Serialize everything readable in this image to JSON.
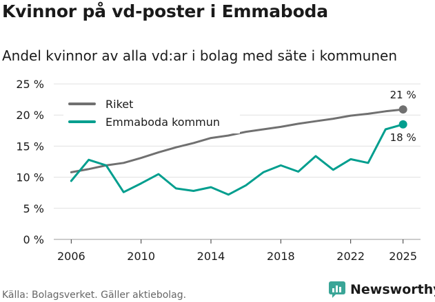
{
  "header": {
    "title": "Kvinnor på vd-poster i Emmaboda",
    "subtitle": "Andel kvinnor av alla vd:ar i bolag med säte i kommunen"
  },
  "footer": {
    "source": "Källa: Bolagsverket. Gäller aktiebolag.",
    "brand": "Newsworthy"
  },
  "colors": {
    "riket": "#707070",
    "kommun": "#009e8e",
    "brand": "#3aa597",
    "grid": "#e0e0e0"
  },
  "chart_data": {
    "type": "line",
    "title": "Kvinnor på vd-poster i Emmaboda",
    "subtitle": "Andel kvinnor av alla vd:ar i bolag med säte i kommunen",
    "xlabel": "",
    "ylabel": "",
    "x": [
      2006,
      2007,
      2008,
      2009,
      2010,
      2011,
      2012,
      2013,
      2014,
      2015,
      2016,
      2017,
      2018,
      2019,
      2020,
      2021,
      2022,
      2023,
      2024,
      2025
    ],
    "xlim": [
      2005,
      2026
    ],
    "xticks": [
      2006,
      2010,
      2014,
      2018,
      2022,
      2025
    ],
    "ylim": [
      0,
      25
    ],
    "yticks": [
      0,
      5,
      10,
      15,
      20,
      25
    ],
    "ytick_labels": [
      "0 %",
      "5 %",
      "10 %",
      "15 %",
      "20 %",
      "25 %"
    ],
    "grid": true,
    "legend_position": "top-left",
    "series": [
      {
        "name": "Riket",
        "color": "#707070",
        "values": [
          10.8,
          11.3,
          11.9,
          12.3,
          13.1,
          14.0,
          14.8,
          15.5,
          16.3,
          16.7,
          17.3,
          17.7,
          18.1,
          18.6,
          19.0,
          19.4,
          19.9,
          20.2,
          20.6,
          20.9
        ],
        "end_label": "21 %"
      },
      {
        "name": "Emmaboda kommun",
        "color": "#009e8e",
        "values": [
          9.4,
          12.8,
          11.9,
          7.6,
          9.0,
          10.5,
          8.2,
          7.8,
          8.4,
          7.2,
          8.7,
          10.8,
          11.9,
          10.9,
          13.4,
          11.2,
          12.9,
          12.3,
          17.7,
          18.5
        ],
        "end_label": "18 %"
      }
    ]
  }
}
